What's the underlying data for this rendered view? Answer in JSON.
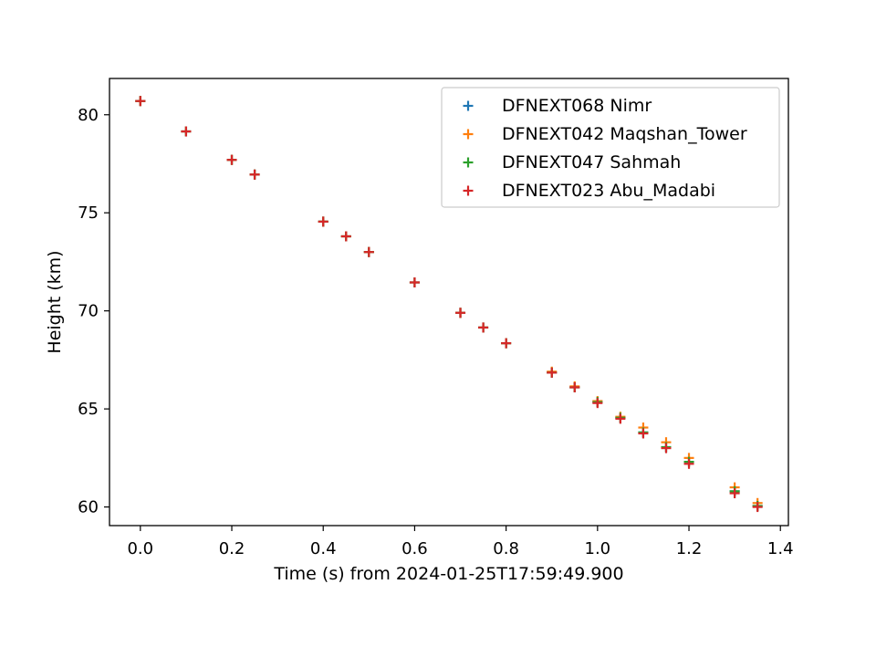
{
  "chart_data": {
    "type": "scatter",
    "title": "",
    "xlabel": "Time (s) from 2024-01-25T17:59:49.900",
    "ylabel": "Height (km)",
    "xlim": [
      -0.0675,
      1.4175
    ],
    "ylim": [
      59.05,
      81.85
    ],
    "xticks": [
      0.0,
      0.2,
      0.4,
      0.6,
      0.8,
      1.0,
      1.2,
      1.4
    ],
    "xtick_labels": [
      "0.0",
      "0.2",
      "0.4",
      "0.6",
      "0.8",
      "1.0",
      "1.2",
      "1.4"
    ],
    "yticks": [
      60,
      65,
      70,
      75,
      80
    ],
    "ytick_labels": [
      "60",
      "65",
      "70",
      "75",
      "80"
    ],
    "grid": false,
    "legend_position": "top-right",
    "marker": "+",
    "series": [
      {
        "name": "DFNEXT068 Nimr",
        "color": "#1f77b4",
        "x": [
          0.0,
          0.1,
          0.2,
          0.25,
          0.4,
          0.45,
          0.5,
          0.6,
          0.7,
          0.75,
          0.8,
          0.9,
          0.95,
          1.0,
          1.05,
          1.1,
          1.15,
          1.2,
          1.3,
          1.35
        ],
        "y": [
          80.7,
          79.15,
          77.7,
          76.95,
          74.55,
          73.8,
          73.0,
          71.45,
          69.9,
          69.15,
          68.35,
          66.85,
          66.1,
          65.35,
          64.55,
          63.8,
          63.05,
          62.3,
          60.8,
          60.05
        ]
      },
      {
        "name": "DFNEXT042 Maqshan_Tower",
        "color": "#ff7f0e",
        "x": [
          0.0,
          0.1,
          0.2,
          0.25,
          0.4,
          0.45,
          0.5,
          0.6,
          0.7,
          0.75,
          0.8,
          0.9,
          0.95,
          1.0,
          1.05,
          1.1,
          1.15,
          1.2,
          1.3,
          1.35
        ],
        "y": [
          80.7,
          79.15,
          77.7,
          76.95,
          74.55,
          73.8,
          73.0,
          71.45,
          69.9,
          69.15,
          68.35,
          66.9,
          66.15,
          65.4,
          64.6,
          64.05,
          63.3,
          62.5,
          61.0,
          60.2
        ]
      },
      {
        "name": "DFNEXT047 Sahmah",
        "color": "#2ca02c",
        "x": [
          0.0,
          0.1,
          0.2,
          0.25,
          0.4,
          0.45,
          0.5,
          0.6,
          0.7,
          0.75,
          0.8,
          0.9,
          0.95,
          1.0,
          1.05,
          1.1,
          1.15,
          1.2,
          1.3,
          1.35
        ],
        "y": [
          80.7,
          79.15,
          77.7,
          76.95,
          74.55,
          73.8,
          73.0,
          71.45,
          69.9,
          69.15,
          68.35,
          66.85,
          66.1,
          65.35,
          64.55,
          63.8,
          63.05,
          62.3,
          60.8,
          60.05
        ]
      },
      {
        "name": "DFNEXT023 Abu_Madabi",
        "color": "#d62728",
        "x": [
          0.0,
          0.1,
          0.2,
          0.25,
          0.4,
          0.45,
          0.5,
          0.6,
          0.7,
          0.75,
          0.8,
          0.9,
          0.95,
          1.0,
          1.05,
          1.1,
          1.15,
          1.2,
          1.3,
          1.35
        ],
        "y": [
          80.7,
          79.15,
          77.7,
          76.95,
          74.55,
          73.8,
          73.0,
          71.45,
          69.9,
          69.15,
          68.35,
          66.85,
          66.1,
          65.3,
          64.5,
          63.75,
          63.0,
          62.2,
          60.7,
          60.0
        ]
      }
    ]
  }
}
